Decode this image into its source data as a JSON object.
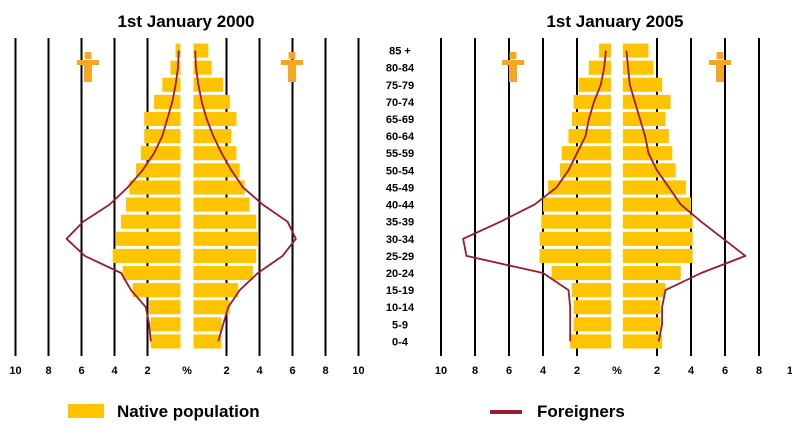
{
  "colors": {
    "native": "#FFC400",
    "foreigners": "#9B1C2E",
    "grid": "#000000",
    "symbol": "#F5A623"
  },
  "age_groups": [
    "0-4",
    "5-9",
    "10-14",
    "15-19",
    "20-24",
    "25-29",
    "30-34",
    "35-39",
    "40-44",
    "45-49",
    "50-54",
    "55-59",
    "60-64",
    "65-69",
    "70-74",
    "75-79",
    "80-84",
    "85 +"
  ],
  "axis_ticks": [
    "10",
    "8",
    "6",
    "4",
    "2",
    "%",
    "2",
    "4",
    "6",
    "8",
    "10"
  ],
  "legend": {
    "native_label": "Native population",
    "foreigners_label": "Foreigners"
  },
  "symbols": {
    "male": "male-symbol-icon",
    "female": "female-symbol-icon"
  },
  "chart_data": [
    {
      "type": "population-pyramid",
      "title": "1st January 2000",
      "unit": "%",
      "xlim": [
        0,
        10
      ],
      "grid": true,
      "native": {
        "left": [
          1.8,
          1.8,
          1.9,
          2.9,
          3.5,
          4.1,
          3.9,
          3.6,
          3.3,
          3.1,
          2.7,
          2.4,
          2.2,
          2.2,
          1.6,
          1.1,
          0.6,
          0.3
        ],
        "right": [
          1.7,
          1.7,
          2.2,
          2.7,
          3.6,
          3.8,
          3.9,
          3.8,
          3.4,
          3.1,
          2.8,
          2.6,
          2.3,
          2.6,
          2.2,
          1.8,
          1.1,
          0.9
        ]
      },
      "foreigners": {
        "left": [
          1.8,
          1.9,
          2.1,
          3.0,
          3.6,
          5.8,
          6.9,
          5.9,
          4.3,
          3.2,
          2.3,
          1.6,
          1.1,
          0.8,
          0.5,
          0.3,
          0.15,
          0.1
        ],
        "right": [
          1.5,
          1.8,
          2.1,
          2.8,
          3.9,
          5.4,
          6.2,
          5.7,
          4.2,
          3.0,
          2.3,
          1.7,
          1.2,
          0.8,
          0.5,
          0.3,
          0.15,
          0.1
        ]
      }
    },
    {
      "type": "population-pyramid",
      "title": "1st January 2005",
      "unit": "%",
      "xlim": [
        0,
        10
      ],
      "grid": true,
      "native": {
        "left": [
          2.4,
          2.2,
          2.2,
          2.3,
          3.5,
          4.2,
          4.2,
          4.1,
          4.0,
          3.7,
          3.0,
          2.9,
          2.5,
          2.3,
          2.2,
          1.9,
          1.3,
          0.7
        ],
        "right": [
          2.3,
          2.2,
          2.2,
          2.5,
          3.4,
          4.1,
          4.1,
          4.1,
          4.0,
          3.7,
          3.1,
          2.9,
          2.7,
          2.5,
          2.8,
          2.3,
          1.8,
          1.5
        ]
      },
      "foreigners": {
        "left": [
          2.4,
          2.4,
          2.4,
          2.5,
          4.0,
          8.5,
          8.7,
          6.5,
          4.5,
          3.2,
          2.5,
          2.0,
          1.5,
          1.3,
          1.0,
          0.6,
          0.4,
          0.3
        ],
        "right": [
          2.1,
          2.3,
          2.3,
          2.5,
          4.6,
          7.2,
          5.9,
          4.6,
          3.4,
          2.7,
          2.0,
          1.5,
          1.3,
          1.0,
          0.7,
          0.4,
          0.3,
          0.2
        ]
      }
    }
  ]
}
